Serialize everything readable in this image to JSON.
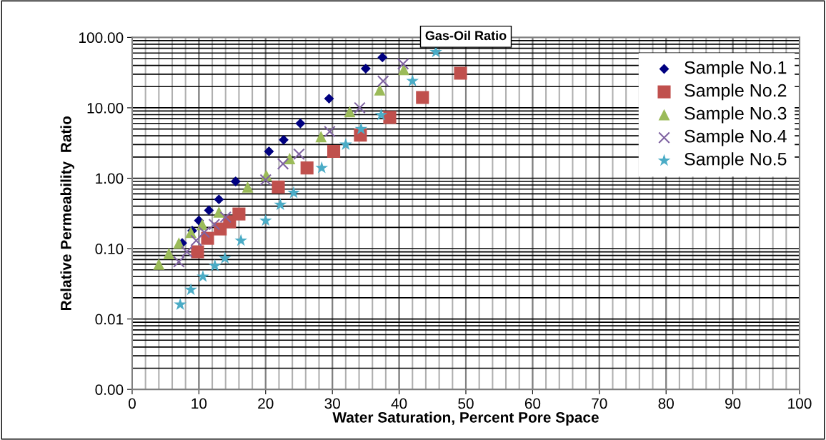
{
  "chart_data": {
    "type": "scatter",
    "title": "Gas-Oil Ratio",
    "xlabel": "Water Saturation, Percent Pore Space",
    "ylabel": "Relative Permeability  Ratio",
    "log": "y",
    "grid": true,
    "legend": "right",
    "xlim": [
      0,
      100
    ],
    "xticks": [
      0,
      10,
      20,
      30,
      40,
      50,
      60,
      70,
      80,
      90,
      100
    ],
    "ylim": [
      0.001,
      100
    ],
    "yticks": [
      {
        "value": 0.001,
        "label": "0.00"
      },
      {
        "value": 0.01,
        "label": "0.01"
      },
      {
        "value": 0.1,
        "label": "0.10"
      },
      {
        "value": 1,
        "label": "1.00"
      },
      {
        "value": 10,
        "label": "10.00"
      },
      {
        "value": 100,
        "label": "100.00"
      }
    ],
    "series": [
      {
        "name": "Sample No.1",
        "color": "#000080",
        "marker": "diamond",
        "x": [
          7.5,
          9,
          10,
          11.5,
          13,
          15.5,
          20.5,
          22.7,
          25.2,
          29.5,
          35,
          37.5
        ],
        "values": [
          0.12,
          0.18,
          0.25,
          0.35,
          0.5,
          0.9,
          2.4,
          3.5,
          6,
          13.5,
          36,
          52
        ]
      },
      {
        "name": "Sample No.2",
        "color": "#c0504d",
        "marker": "square",
        "x": [
          9.8,
          11.3,
          13.2,
          14.6,
          16,
          21.9,
          26.2,
          30.2,
          34.2,
          38.6,
          43.5,
          49.2
        ],
        "values": [
          0.09,
          0.14,
          0.19,
          0.24,
          0.31,
          0.75,
          1.4,
          2.4,
          4.1,
          7.3,
          14,
          31
        ]
      },
      {
        "name": "Sample No.3",
        "color": "#9bbb59",
        "marker": "triangle",
        "x": [
          4,
          5.5,
          7,
          8.8,
          10.5,
          13,
          17.3,
          20.1,
          23.6,
          28.3,
          32.6,
          37.1,
          40.7
        ],
        "values": [
          0.06,
          0.085,
          0.12,
          0.17,
          0.22,
          0.33,
          0.75,
          1.1,
          1.9,
          3.9,
          8.8,
          18,
          35
        ]
      },
      {
        "name": "Sample No.4",
        "color": "#8064a2",
        "marker": "cross",
        "x": [
          7,
          8.2,
          9.6,
          10.8,
          12.3,
          14,
          20,
          22.6,
          25,
          29.6,
          34.1,
          37.6,
          40.6
        ],
        "values": [
          0.065,
          0.09,
          0.13,
          0.17,
          0.22,
          0.28,
          0.95,
          1.6,
          2.2,
          4.6,
          10,
          24,
          42
        ]
      },
      {
        "name": "Sample No.5",
        "color": "#4bacc6",
        "marker": "star",
        "x": [
          7.2,
          8.8,
          10.6,
          12.4,
          13.9,
          16.3,
          20,
          22.2,
          24.2,
          28.4,
          32,
          34.3,
          37.3,
          42,
          45.5
        ],
        "values": [
          0.016,
          0.026,
          0.04,
          0.057,
          0.073,
          0.13,
          0.25,
          0.42,
          0.62,
          1.4,
          3,
          5,
          7.9,
          24,
          62
        ]
      }
    ]
  }
}
